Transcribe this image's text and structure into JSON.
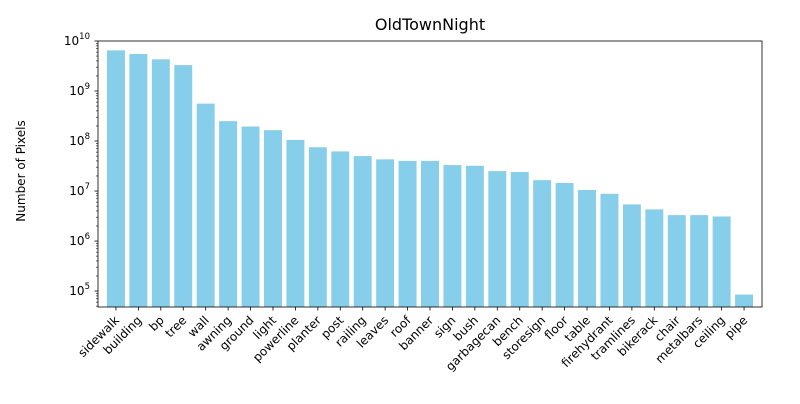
{
  "chart_data": {
    "type": "bar",
    "title": "OldTownNight",
    "xlabel": "",
    "ylabel": "Number of Pixels",
    "yscale": "log",
    "ylim": [
      48000,
      10000000000
    ],
    "yticks": [
      {
        "value": 100000,
        "base": "10",
        "exp": "5"
      },
      {
        "value": 1000000,
        "base": "10",
        "exp": "6"
      },
      {
        "value": 10000000,
        "base": "10",
        "exp": "7"
      },
      {
        "value": 100000000,
        "base": "10",
        "exp": "8"
      },
      {
        "value": 1000000000,
        "base": "10",
        "exp": "9"
      },
      {
        "value": 10000000000,
        "base": "10",
        "exp": "10"
      }
    ],
    "bar_color": "#87ceeb",
    "grid": false,
    "categories": [
      "sidewalk",
      "building",
      "bp",
      "tree",
      "wall",
      "awning",
      "ground",
      "light",
      "powerline",
      "planter",
      "post",
      "railing",
      "leaves",
      "roof",
      "banner",
      "sign",
      "bush",
      "garbagecan",
      "bench",
      "storesign",
      "floor",
      "table",
      "firehydrant",
      "tramlines",
      "bikerack",
      "chair",
      "metalbars",
      "ceiling",
      "pipe"
    ],
    "values": [
      6500000000,
      5500000000,
      4300000000,
      3300000000,
      560000000,
      250000000,
      195000000,
      165000000,
      105000000,
      75000000,
      62000000,
      50000000,
      43000000,
      40000000,
      40000000,
      33000000,
      32000000,
      25000000,
      24000000,
      16500000,
      14500000,
      10500000,
      8800000,
      5400000,
      4300000,
      3300000,
      3300000,
      3100000,
      85000
    ]
  }
}
